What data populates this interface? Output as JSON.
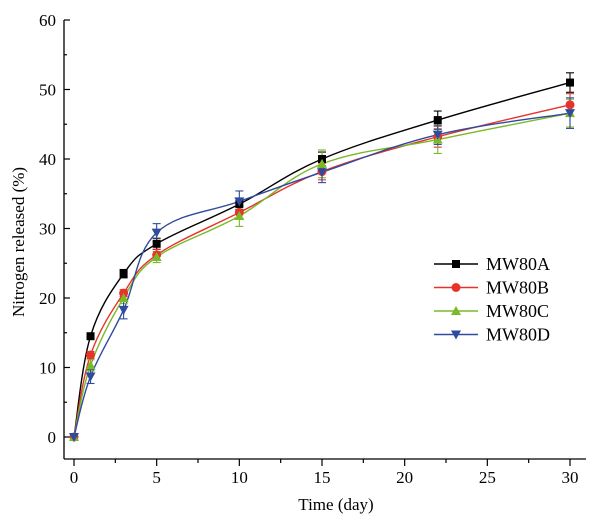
{
  "chart_data": {
    "type": "line",
    "xlabel": "Time (day)",
    "ylabel": "Nitrogen released (%)",
    "xlim": [
      0,
      30
    ],
    "ylim": [
      0,
      60
    ],
    "x_ticks": [
      "0",
      "5",
      "10",
      "15",
      "20",
      "25",
      "30"
    ],
    "y_ticks": [
      "0",
      "10",
      "20",
      "30",
      "40",
      "50",
      "60"
    ],
    "x": [
      0,
      1,
      3,
      5,
      10,
      15,
      22,
      30
    ],
    "legend_position": "center-right",
    "grid": false,
    "series": [
      {
        "name": "MW80A",
        "color": "#000000",
        "marker": "square",
        "values": [
          0,
          14.5,
          23.5,
          27.8,
          33.5,
          40.0,
          45.6,
          51.0
        ],
        "errors": [
          0.2,
          0.4,
          0.6,
          0.8,
          0.8,
          1.0,
          1.3,
          1.4
        ]
      },
      {
        "name": "MW80B",
        "color": "#e8332b",
        "marker": "circle",
        "values": [
          0,
          11.8,
          20.7,
          26.2,
          32.3,
          38.2,
          43.2,
          47.8
        ],
        "errors": [
          0.2,
          0.5,
          0.5,
          0.8,
          1.0,
          1.2,
          1.5,
          1.6
        ]
      },
      {
        "name": "MW80C",
        "color": "#7ab929",
        "marker": "triangle-up",
        "values": [
          0,
          10.3,
          20.0,
          25.9,
          31.8,
          39.3,
          42.8,
          46.6
        ],
        "errors": [
          0.2,
          0.8,
          0.8,
          0.8,
          1.5,
          2.0,
          2.0,
          2.0
        ]
      },
      {
        "name": "MW80D",
        "color": "#2f4a9e",
        "marker": "triangle-down",
        "values": [
          0,
          8.7,
          18.3,
          29.4,
          33.9,
          38.1,
          43.5,
          46.6
        ],
        "errors": [
          0.2,
          1.0,
          1.3,
          1.3,
          1.5,
          1.5,
          1.4,
          2.2
        ]
      }
    ]
  }
}
